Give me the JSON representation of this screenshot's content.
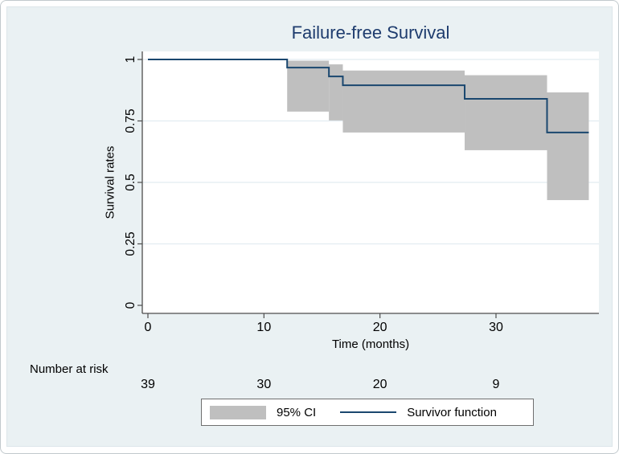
{
  "title": "Failure-free Survival",
  "colors": {
    "figure_background": "#eaf1f3",
    "plot_background": "#ffffff",
    "gridline": "#e2ecf1",
    "axis": "#4d4d4d",
    "survivor_line": "#1a476f",
    "ci_fill": "#bfbfbf",
    "title_text": "#1e3c6e",
    "text": "#000000",
    "legend_border": "#6f6f6f",
    "legend_background": "#ffffff"
  },
  "chart_data": {
    "type": "line",
    "subtype": "kaplan-meier-step",
    "title": "Failure-free Survival",
    "xlabel": "Time (months)",
    "ylabel": "Survival rates",
    "xticks": [
      0,
      10,
      20,
      30
    ],
    "xtick_labels": [
      "0",
      "10",
      "20",
      "30"
    ],
    "yticks": [
      0,
      0.25,
      0.5,
      0.75,
      1
    ],
    "ytick_labels": [
      "0",
      "0.25",
      "0.5",
      "0.75",
      "1"
    ],
    "xlim": [
      0,
      38.8
    ],
    "ylim": [
      0,
      1
    ],
    "grid": "horizontal-only",
    "survivor_steps": [
      {
        "t": 0,
        "s": 1.0
      },
      {
        "t": 12.0,
        "s": 0.967
      },
      {
        "t": 15.6,
        "s": 0.931
      },
      {
        "t": 16.8,
        "s": 0.895
      },
      {
        "t": 27.3,
        "s": 0.84
      },
      {
        "t": 34.4,
        "s": 0.703
      }
    ],
    "end_time": 38.0,
    "ci_segments": [
      {
        "t_start": 12.0,
        "t_end": 15.6,
        "upper": 0.995,
        "lower": 0.788
      },
      {
        "t_start": 15.6,
        "t_end": 16.8,
        "upper": 0.98,
        "lower": 0.752
      },
      {
        "t_start": 16.8,
        "t_end": 27.3,
        "upper": 0.955,
        "lower": 0.703
      },
      {
        "t_start": 27.3,
        "t_end": 34.4,
        "upper": 0.936,
        "lower": 0.631
      },
      {
        "t_start": 34.4,
        "t_end": 38.0,
        "upper": 0.866,
        "lower": 0.428
      }
    ],
    "legend": [
      {
        "swatch": "ci-band",
        "label": "95% CI"
      },
      {
        "swatch": "line",
        "label": "Survivor function"
      }
    ],
    "risk_table": {
      "label": "Number at risk",
      "times": [
        0,
        10,
        20,
        30
      ],
      "values": [
        "39",
        "30",
        "20",
        "9"
      ]
    },
    "legend_position": "bottom-center"
  }
}
